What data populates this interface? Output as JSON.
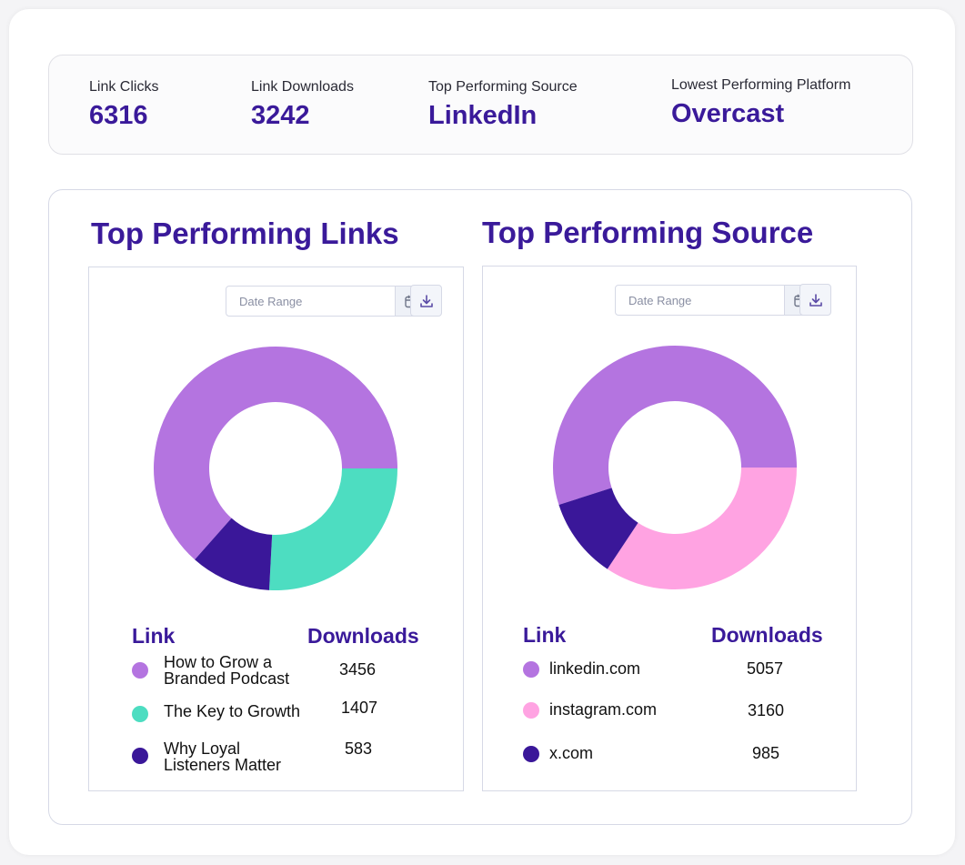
{
  "stats": [
    {
      "label": "Link Clicks",
      "value": "6316"
    },
    {
      "label": "Link Downloads",
      "value": "3242"
    },
    {
      "label": "Top Performing Source",
      "value": "LinkedIn"
    },
    {
      "label": "Lowest Performing Platform",
      "value": "Overcast"
    }
  ],
  "links_section": {
    "title": "Top Performing Links",
    "date_placeholder": "Date Range",
    "col_link": "Link",
    "col_downloads": "Downloads",
    "rows": [
      {
        "label": "How to Grow a Branded Podcast",
        "value": "3456",
        "color": "#b474e0"
      },
      {
        "label": "The Key to Growth",
        "value": "1407",
        "color": "#4dddc1"
      },
      {
        "label": "Why Loyal Listeners Matter",
        "value": "583",
        "color": "#3a1799"
      }
    ]
  },
  "source_section": {
    "title": "Top Performing Source",
    "date_placeholder": "Date Range",
    "col_link": "Link",
    "col_downloads": "Downloads",
    "rows": [
      {
        "label": "linkedin.com",
        "value": "5057",
        "color": "#b474e0"
      },
      {
        "label": "instagram.com",
        "value": "3160",
        "color": "#ffa3e2"
      },
      {
        "label": "x.com",
        "value": "985",
        "color": "#3a1799"
      }
    ]
  },
  "chart_data": [
    {
      "type": "pie",
      "categories": [
        "How to Grow a Branded Podcast",
        "The Key to Growth",
        "Why Loyal Listeners Matter"
      ],
      "values": [
        3456,
        1407,
        583
      ],
      "colors": [
        "#b474e0",
        "#4dddc1",
        "#3a1799"
      ],
      "donut": true
    },
    {
      "type": "pie",
      "categories": [
        "linkedin.com",
        "instagram.com",
        "x.com"
      ],
      "values": [
        5057,
        3160,
        985
      ],
      "colors": [
        "#b474e0",
        "#ffa3e2",
        "#3a1799"
      ],
      "donut": true
    }
  ]
}
